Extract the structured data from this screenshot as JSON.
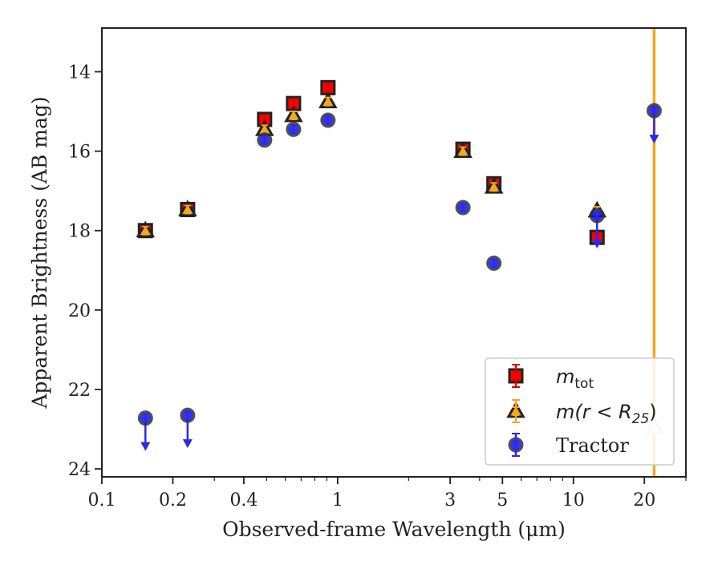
{
  "chart_data": {
    "type": "scatter",
    "xlabel": "Observed-frame Wavelength (μm)",
    "ylabel": "Apparent Brightness (AB mag)",
    "xscale": "log",
    "xlim": [
      0.1,
      30
    ],
    "ylim": [
      24.2,
      12.9
    ],
    "y_inverted": true,
    "xticks": [
      {
        "value": 0.1,
        "label": "0.1"
      },
      {
        "value": 0.2,
        "label": "0.2"
      },
      {
        "value": 0.4,
        "label": "0.4"
      },
      {
        "value": 1,
        "label": "1"
      },
      {
        "value": 3,
        "label": "3"
      },
      {
        "value": 5,
        "label": "5"
      },
      {
        "value": 10,
        "label": "10"
      },
      {
        "value": 20,
        "label": "20"
      }
    ],
    "yticks": [
      14,
      16,
      18,
      20,
      22,
      24
    ],
    "grid": false,
    "legend_position": "bottom-right",
    "vertical_line": {
      "x": 22.0,
      "color": "#f5a623"
    },
    "series": [
      {
        "name": "m_tot",
        "legend_base": "m",
        "legend_sub": "tot",
        "marker": "square",
        "color": "#ff0000",
        "edgecolor": "#222222",
        "errcolor": "#e00000",
        "points": [
          {
            "x": 0.153,
            "y": 18.0
          },
          {
            "x": 0.231,
            "y": 17.47
          },
          {
            "x": 0.49,
            "y": 15.2
          },
          {
            "x": 0.65,
            "y": 14.8
          },
          {
            "x": 0.91,
            "y": 14.4
          },
          {
            "x": 3.4,
            "y": 15.95
          },
          {
            "x": 4.6,
            "y": 16.82
          },
          {
            "x": 12.6,
            "y": 18.17
          }
        ]
      },
      {
        "name": "m(r < R25)",
        "legend_base": "m(r < R",
        "legend_sub": "25",
        "legend_close": ")",
        "marker": "triangle",
        "color": "#f5a623",
        "edgecolor": "#222222",
        "errcolor": "#f5a623",
        "points": [
          {
            "x": 0.153,
            "y": 18.0
          },
          {
            "x": 0.231,
            "y": 17.47
          },
          {
            "x": 0.49,
            "y": 15.45
          },
          {
            "x": 0.65,
            "y": 15.1
          },
          {
            "x": 0.91,
            "y": 14.75
          },
          {
            "x": 3.4,
            "y": 16.0
          },
          {
            "x": 4.6,
            "y": 16.9
          },
          {
            "x": 12.6,
            "y": 17.5
          },
          {
            "x": 22.0,
            "y": 22.95,
            "faded": true
          }
        ]
      },
      {
        "name": "Tractor",
        "marker": "circle",
        "color": "#1010ee",
        "edgecolor": "#333333",
        "errcolor": "#2a2ae8",
        "points": [
          {
            "x": 0.153,
            "y": 22.72,
            "upper_limit": true
          },
          {
            "x": 0.231,
            "y": 22.65,
            "upper_limit": true
          },
          {
            "x": 0.49,
            "y": 15.72
          },
          {
            "x": 0.65,
            "y": 15.45
          },
          {
            "x": 0.91,
            "y": 15.22
          },
          {
            "x": 3.4,
            "y": 17.42
          },
          {
            "x": 4.6,
            "y": 18.82
          },
          {
            "x": 12.6,
            "y": 17.62,
            "upper_limit": true
          },
          {
            "x": 22.0,
            "y": 14.98,
            "upper_limit": true
          }
        ]
      }
    ]
  }
}
